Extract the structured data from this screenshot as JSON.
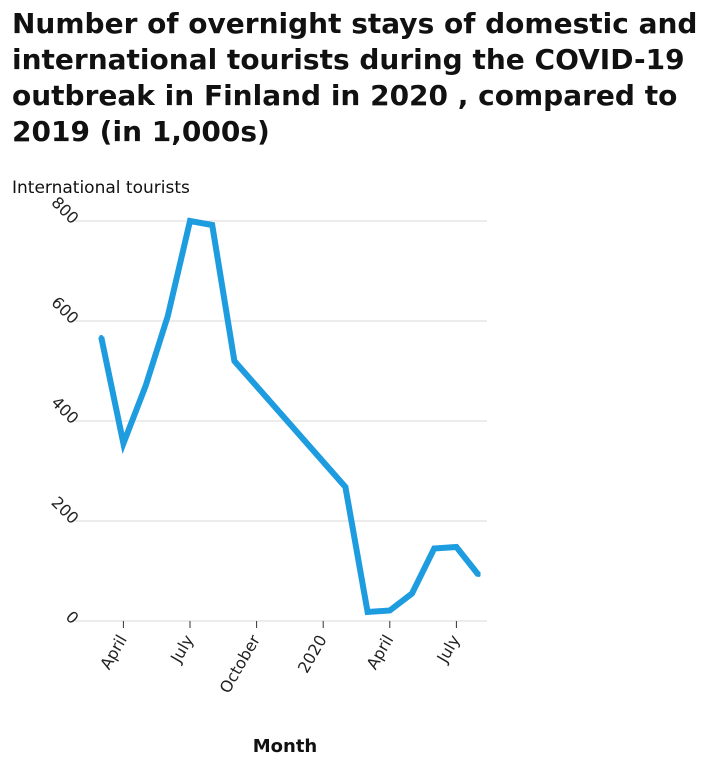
{
  "chart_data": {
    "type": "line",
    "title": "Number of overnight stays of domestic and international tourists during the COVID-19 outbreak in Finland in 2020 , compared to 2019 (in 1,000s)",
    "xlabel": "Month",
    "ylabel": "International tourists",
    "x_tick_labels": [
      "April",
      "July",
      "October",
      "2020",
      "April",
      "July"
    ],
    "y_ticks": [
      0,
      200,
      400,
      600,
      800
    ],
    "ylim": [
      0,
      800
    ],
    "grid": "horizontal",
    "x": [
      "2019-03",
      "2019-04",
      "2019-05",
      "2019-06",
      "2019-07",
      "2019-08",
      "2019-09",
      "2020-02",
      "2020-03",
      "2020-04",
      "2020-05",
      "2020-06",
      "2020-07",
      "2020-08"
    ],
    "series": [
      {
        "values": [
          568,
          355,
          470,
          610,
          800,
          792,
          520,
          268,
          18,
          21,
          55,
          145,
          148,
          92
        ]
      }
    ],
    "line_color": "#1e9ce0",
    "grid_color": "#d9d9d9"
  }
}
